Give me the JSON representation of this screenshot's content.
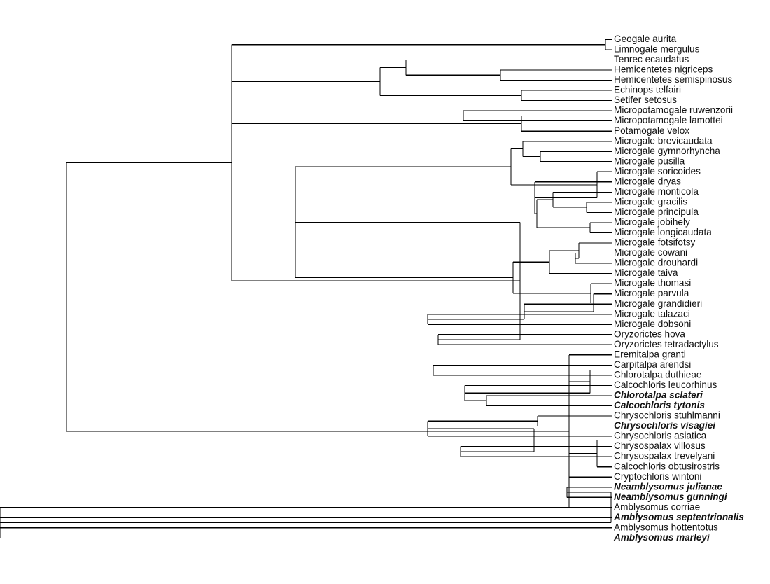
{
  "tree": {
    "newick": "(((Geogale_aurita,Limnogale_mergulus),(((Tenrec_ecaudatus,(Hemicentetes_nigriceps,Hemicentetes_semispinosus)),(Echinops_telfairi,Setifer_setosus)),((Micropotamogale_ruwenzorii,Micropotamogale_lamottei),Potamogale_velox)),((((Microgale_brevicaudata,(Microgale_gymnorhyncha,Microgale_pusilla)),(Microgale_soricoides,(Microgale_dryas,((Microgale_monticola,(Microgale_gracilis,Microgale_principula)),(Microgale_jobihely,Microgale_longicaudata))))),(((Microgale_fotsifotsy,(Microgale_cowani,Microgale_drouhardi)),Microgale_taiva),(Microgale_thomasi,(Microgale_parvula,(Microgale_grandidieri,(Microgale_talazaci,Microgale_dobsoni)))))),(Oryzorictes_hova,Oryzorictes_tetradactylus))),(Eremitalpa_granti,((Carpitalpa_arendsi,Chlorotalpa_duthieae),(Calcochloris_leucorhinus,(Chlorotalpa_sclateri,Calcochloris_tytonis))),((((Chrysochloris_stuhlmanni,Chrysochloris_visagiei),Chrysochloris_asiatica),(Chrysospalax_villosus,Chrysospalax_trevelyani)),Calcochloris_obtusirostris),Cryptochloris_wintoni,((Neamblysomus_julianae,Neamblysomus_gunningi),((Amblysomus_corriae,Amblysomus_septentrionalis),(Amblysomus_hottentotus,Amblysomus_marleyi)))));",
    "taxa": [
      {
        "label": "Geogale aurita",
        "bold": false
      },
      {
        "label": "Limnogale mergulus",
        "bold": false
      },
      {
        "label": "Tenrec ecaudatus",
        "bold": false
      },
      {
        "label": "Hemicentetes nigriceps",
        "bold": false
      },
      {
        "label": "Hemicentetes semispinosus",
        "bold": false
      },
      {
        "label": "Echinops telfairi",
        "bold": false
      },
      {
        "label": "Setifer setosus",
        "bold": false
      },
      {
        "label": "Micropotamogale ruwenzorii",
        "bold": false
      },
      {
        "label": "Micropotamogale lamottei",
        "bold": false
      },
      {
        "label": "Potamogale velox",
        "bold": false
      },
      {
        "label": "Microgale brevicaudata",
        "bold": false
      },
      {
        "label": "Microgale gymnorhyncha",
        "bold": false
      },
      {
        "label": "Microgale pusilla",
        "bold": false
      },
      {
        "label": "Microgale soricoides",
        "bold": false
      },
      {
        "label": "Microgale dryas",
        "bold": false
      },
      {
        "label": "Microgale monticola",
        "bold": false
      },
      {
        "label": "Microgale gracilis",
        "bold": false
      },
      {
        "label": "Microgale principula",
        "bold": false
      },
      {
        "label": "Microgale jobihely",
        "bold": false
      },
      {
        "label": "Microgale longicaudata",
        "bold": false
      },
      {
        "label": "Microgale fotsifotsy",
        "bold": false
      },
      {
        "label": "Microgale cowani",
        "bold": false
      },
      {
        "label": "Microgale drouhardi",
        "bold": false
      },
      {
        "label": "Microgale taiva",
        "bold": false
      },
      {
        "label": "Microgale thomasi",
        "bold": false
      },
      {
        "label": "Microgale parvula",
        "bold": false
      },
      {
        "label": "Microgale grandidieri",
        "bold": false
      },
      {
        "label": "Microgale talazaci",
        "bold": false
      },
      {
        "label": "Microgale dobsoni",
        "bold": false
      },
      {
        "label": "Oryzorictes hova",
        "bold": false
      },
      {
        "label": "Oryzorictes tetradactylus",
        "bold": false
      },
      {
        "label": "Eremitalpa granti",
        "bold": false
      },
      {
        "label": "Carpitalpa arendsi",
        "bold": false
      },
      {
        "label": "Chlorotalpa duthieae",
        "bold": false
      },
      {
        "label": "Calcochloris leucorhinus",
        "bold": false
      },
      {
        "label": "Chlorotalpa sclateri",
        "bold": true
      },
      {
        "label": "Calcochloris tytonis",
        "bold": true
      },
      {
        "label": "Chrysochloris stuhlmanni",
        "bold": false
      },
      {
        "label": "Chrysochloris visagiei",
        "bold": true
      },
      {
        "label": "Chrysochloris asiatica",
        "bold": false
      },
      {
        "label": "Chrysospalax villosus",
        "bold": false
      },
      {
        "label": "Chrysospalax trevelyani",
        "bold": false
      },
      {
        "label": "Calcochloris obtusirostris",
        "bold": false
      },
      {
        "label": "Cryptochloris wintoni",
        "bold": false
      },
      {
        "label": "Neamblysomus julianae",
        "bold": true
      },
      {
        "label": "Neamblysomus gunningi",
        "bold": true
      },
      {
        "label": "Amblysomus corriae",
        "bold": false
      },
      {
        "label": "Amblysomus septentrionalis",
        "bold": true
      },
      {
        "label": "Amblysomus hottentotus",
        "bold": false
      },
      {
        "label": "Amblysomus marleyi",
        "bold": true
      }
    ]
  }
}
